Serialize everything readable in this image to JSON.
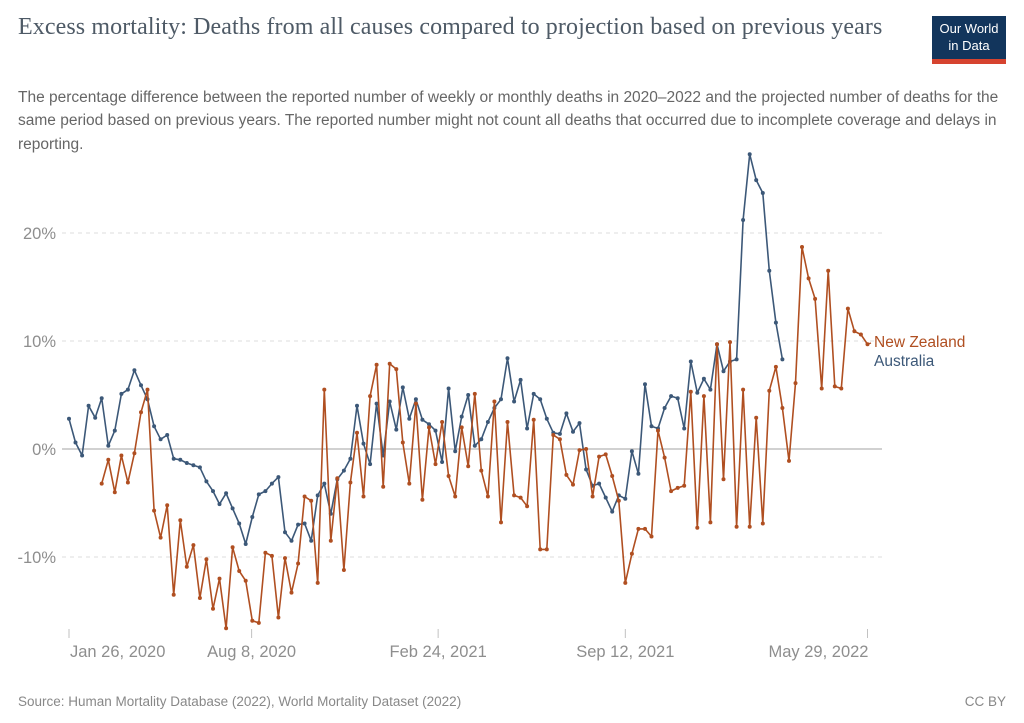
{
  "header": {
    "title": "Excess mortality: Deaths from all causes compared to projection based on previous years",
    "subtitle": "The percentage difference between the reported number of weekly or monthly deaths in 2020–2022 and the projected number of deaths for the same period based on previous years. The reported number might not count all deaths that occurred due to incomplete coverage and delays in reporting.",
    "logo": {
      "line1": "Our World",
      "line2": "in Data",
      "bg_color": "#12355C",
      "accent_color": "#D6432F",
      "text_color": "#FFFFFF"
    }
  },
  "chart_data": {
    "type": "line",
    "title": "Excess mortality: Deaths from all causes compared to projection based on previous years",
    "x_unit": "weekly data, weeks since Jan 26 2020",
    "y_unit": "percent",
    "grid": "horizontal dashed gridlines, solid zero line",
    "legend_position": "right of line ends",
    "x_axis": {
      "tick_labels": [
        "Jan 26, 2020",
        "Aug 8, 2020",
        "Feb 24, 2021",
        "Sep 12, 2021",
        "May 29, 2022"
      ],
      "tick_weeks": [
        0,
        27.9,
        56.4,
        85,
        122
      ]
    },
    "y_axis": {
      "tick_labels": [
        "20%",
        "10%",
        "0%",
        "-10%"
      ],
      "tick_values": [
        20,
        10,
        0,
        -10
      ],
      "range": [
        -18,
        28
      ]
    },
    "series": [
      {
        "name": "New Zealand",
        "color": "#B04F21",
        "start_week": 5,
        "values": [
          -3.2,
          -1.0,
          -4.0,
          -0.6,
          -3.1,
          -0.4,
          3.4,
          5.5,
          -5.7,
          -8.2,
          -5.2,
          -13.5,
          -6.6,
          -10.9,
          -8.9,
          -13.8,
          -10.2,
          -14.8,
          -12.0,
          -16.6,
          -9.1,
          -11.3,
          -12.2,
          -15.9,
          -16.1,
          -9.6,
          -9.9,
          -15.6,
          -10.1,
          -13.3,
          -10.6,
          -4.4,
          -4.8,
          -12.4,
          5.5,
          -8.5,
          -2.7,
          -11.2,
          -3.1,
          1.5,
          -4.4,
          4.9,
          7.8,
          -3.5,
          7.9,
          7.4,
          0.6,
          -3.2,
          4.2,
          -4.7,
          2.0,
          -1.4,
          2.5,
          -2.5,
          -4.4,
          2.0,
          -1.6,
          5.1,
          -2.0,
          -4.4,
          4.4,
          -6.8,
          2.5,
          -4.3,
          -4.5,
          -5.3,
          2.7,
          -9.3,
          -9.3,
          1.3,
          0.9,
          -2.4,
          -3.3,
          -0.1,
          0.0,
          -4.4,
          -0.7,
          -0.5,
          -2.5,
          -4.8,
          -12.4,
          -9.7,
          -7.4,
          -7.4,
          -8.1,
          1.7,
          -0.8,
          -3.9,
          -3.6,
          -3.4,
          5.3,
          -7.3,
          4.9,
          -6.8,
          9.7,
          -2.8,
          9.9,
          -7.2,
          5.5,
          -7.2,
          2.9,
          -6.9,
          5.4,
          7.6,
          3.8,
          -1.1,
          6.1,
          18.7,
          15.8,
          13.9,
          5.6,
          16.5,
          5.8,
          5.6,
          13.0,
          10.9,
          10.6,
          9.7
        ]
      },
      {
        "name": "Australia",
        "color": "#3C5878",
        "start_week": 0,
        "values": [
          2.8,
          0.6,
          -0.6,
          4.0,
          2.9,
          4.7,
          0.3,
          1.7,
          5.1,
          5.5,
          7.3,
          5.9,
          4.6,
          2.1,
          0.9,
          1.3,
          -0.9,
          -1.0,
          -1.3,
          -1.5,
          -1.7,
          -3.0,
          -3.9,
          -5.1,
          -4.1,
          -5.5,
          -6.9,
          -8.8,
          -6.3,
          -4.2,
          -3.9,
          -3.2,
          -2.6,
          -7.7,
          -8.5,
          -7.0,
          -6.9,
          -8.5,
          -4.3,
          -3.2,
          -6.0,
          -2.8,
          -2.0,
          -0.9,
          4.0,
          0.5,
          -1.4,
          4.2,
          -0.6,
          4.4,
          1.8,
          5.7,
          2.8,
          4.6,
          2.7,
          2.3,
          1.7,
          -1.2,
          5.6,
          -0.2,
          3.0,
          5.0,
          0.3,
          0.9,
          2.5,
          3.8,
          4.6,
          8.4,
          4.4,
          6.4,
          1.9,
          5.1,
          4.6,
          2.8,
          1.5,
          1.4,
          3.3,
          1.6,
          2.4,
          -1.9,
          -3.4,
          -3.2,
          -4.5,
          -5.8,
          -4.3,
          -4.6,
          -0.2,
          -2.3,
          6.0,
          2.1,
          1.9,
          3.8,
          4.9,
          4.7,
          1.9,
          8.1,
          5.2,
          6.5,
          5.5,
          9.7,
          7.2,
          8.1,
          8.3,
          21.2,
          27.3,
          24.9,
          23.7,
          16.5,
          11.7,
          8.3
        ]
      }
    ]
  },
  "footer": {
    "source": "Source: Human Mortality Database (2022), World Mortality Dataset (2022)",
    "license": "CC BY"
  }
}
